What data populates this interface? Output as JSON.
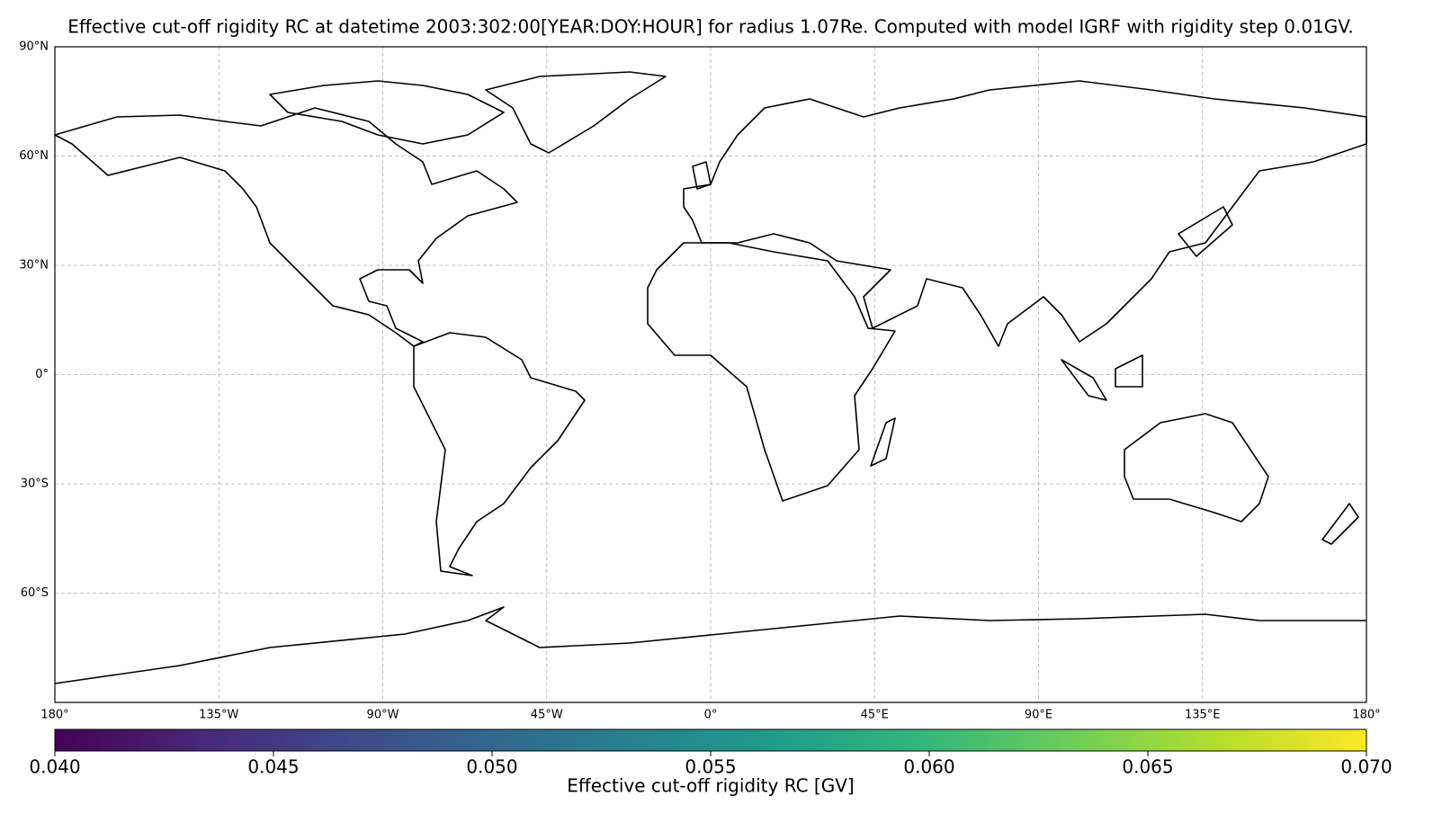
{
  "chart_data": {
    "type": "map",
    "title": "Effective cut-off rigidity RC at datetime 2003:302:00[YEAR:DOY:HOUR] for radius 1.07Re. Computed with model IGRF with rigidity step 0.01GV.",
    "xlim": [
      -180,
      180
    ],
    "ylim": [
      -90,
      90
    ],
    "xticks": [
      {
        "value": -180,
        "label": "180°"
      },
      {
        "value": -135,
        "label": "135°W"
      },
      {
        "value": -90,
        "label": "90°W"
      },
      {
        "value": -45,
        "label": "45°W"
      },
      {
        "value": 0,
        "label": "0°"
      },
      {
        "value": 45,
        "label": "45°E"
      },
      {
        "value": 90,
        "label": "90°E"
      },
      {
        "value": 135,
        "label": "135°E"
      },
      {
        "value": 180,
        "label": "180°"
      }
    ],
    "yticks": [
      {
        "value": 90,
        "label": "90°N"
      },
      {
        "value": 60,
        "label": "60°N"
      },
      {
        "value": 30,
        "label": "30°N"
      },
      {
        "value": 0,
        "label": "0°"
      },
      {
        "value": -30,
        "label": "30°S"
      },
      {
        "value": -60,
        "label": "60°S"
      }
    ],
    "grid": true,
    "colorbar": {
      "label": "Effective cut-off rigidity RC [GV]",
      "colormap": [
        "#440154",
        "#482878",
        "#3e4989",
        "#31688e",
        "#26828e",
        "#1f9e89",
        "#35b779",
        "#6ece58",
        "#b5de2b",
        "#fde725"
      ],
      "lim": [
        0.04,
        0.07
      ],
      "ticks": [
        {
          "value": 0.04,
          "label": "0.040"
        },
        {
          "value": 0.045,
          "label": "0.045"
        },
        {
          "value": 0.05,
          "label": "0.050"
        },
        {
          "value": 0.055,
          "label": "0.055"
        },
        {
          "value": 0.06,
          "label": "0.060"
        },
        {
          "value": 0.065,
          "label": "0.065"
        },
        {
          "value": 0.07,
          "label": "0.070"
        }
      ]
    }
  }
}
